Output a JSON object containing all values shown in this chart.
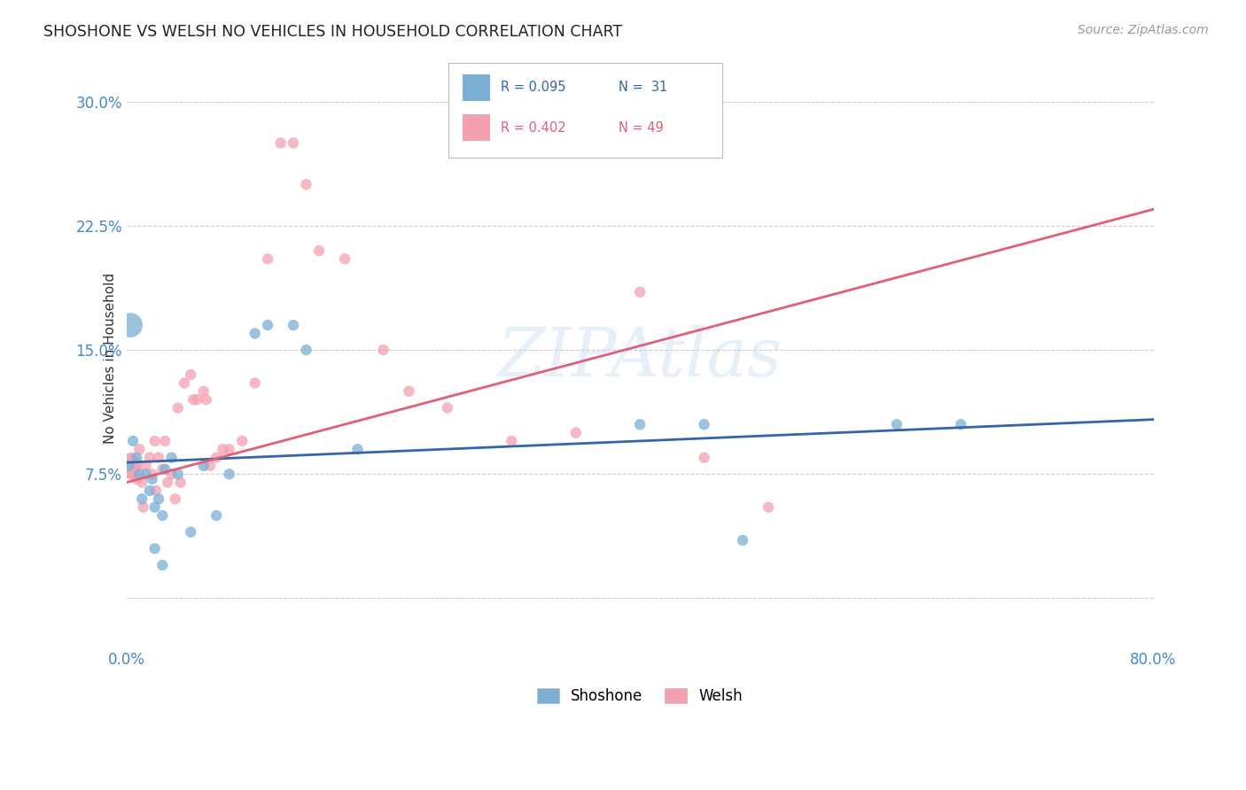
{
  "title": "SHOSHONE VS WELSH NO VEHICLES IN HOUSEHOLD CORRELATION CHART",
  "source": "Source: ZipAtlas.com",
  "ylabel": "No Vehicles in Household",
  "xlim": [
    0.0,
    80.0
  ],
  "ylim": [
    -3.0,
    32.0
  ],
  "yticks": [
    0.0,
    7.5,
    15.0,
    22.5,
    30.0
  ],
  "ytick_labels": [
    "",
    "7.5%",
    "15.0%",
    "22.5%",
    "30.0%"
  ],
  "xticks": [
    0.0,
    20.0,
    40.0,
    60.0,
    80.0
  ],
  "xtick_labels": [
    "0.0%",
    "",
    "",
    "",
    "80.0%"
  ],
  "grid_color": "#cccccc",
  "background_color": "#ffffff",
  "shoshone_color": "#7bafd4",
  "welsh_color": "#f4a0b0",
  "shoshone_line_color": "#3465a8",
  "welsh_line_color": "#e0607a",
  "shoshone_scatter_x": [
    0.2,
    0.5,
    0.8,
    1.0,
    1.2,
    1.5,
    1.8,
    2.0,
    2.2,
    2.5,
    2.8,
    3.0,
    3.5,
    4.0,
    5.0,
    6.0,
    7.0,
    8.0,
    10.0,
    11.0,
    13.0,
    14.0,
    18.0,
    40.0,
    45.0,
    60.0,
    65.0,
    0.3,
    2.2,
    2.8,
    48.0
  ],
  "shoshone_scatter_y": [
    8.0,
    9.5,
    8.5,
    7.5,
    6.0,
    7.5,
    6.5,
    7.2,
    5.5,
    6.0,
    5.0,
    7.8,
    8.5,
    7.5,
    4.0,
    8.0,
    5.0,
    7.5,
    16.0,
    16.5,
    16.5,
    15.0,
    9.0,
    10.5,
    10.5,
    10.5,
    10.5,
    16.5,
    3.0,
    2.0,
    3.5
  ],
  "shoshone_scatter_sizes": [
    80,
    80,
    80,
    80,
    80,
    80,
    80,
    80,
    80,
    80,
    80,
    80,
    80,
    80,
    80,
    80,
    80,
    80,
    80,
    80,
    80,
    80,
    80,
    80,
    80,
    80,
    80,
    400,
    80,
    80,
    80
  ],
  "welsh_scatter_x": [
    0.2,
    0.4,
    0.5,
    0.6,
    0.8,
    1.0,
    1.2,
    1.5,
    1.8,
    2.0,
    2.2,
    2.5,
    2.8,
    3.0,
    3.2,
    3.5,
    4.0,
    4.5,
    5.0,
    5.5,
    6.0,
    6.5,
    7.0,
    8.0,
    10.0,
    11.0,
    12.0,
    13.0,
    14.0,
    15.0,
    17.0,
    20.0,
    25.0,
    30.0,
    35.0,
    40.0,
    45.0,
    50.0,
    0.3,
    0.7,
    1.3,
    2.3,
    3.8,
    4.2,
    5.2,
    6.2,
    7.5,
    9.0,
    22.0
  ],
  "welsh_scatter_y": [
    8.0,
    8.5,
    7.5,
    8.0,
    7.2,
    9.0,
    7.0,
    8.0,
    8.5,
    7.5,
    9.5,
    8.5,
    7.8,
    9.5,
    7.0,
    7.5,
    11.5,
    13.0,
    13.5,
    12.0,
    12.5,
    8.0,
    8.5,
    9.0,
    13.0,
    20.5,
    27.5,
    27.5,
    25.0,
    21.0,
    20.5,
    15.0,
    11.5,
    9.5,
    10.0,
    18.5,
    8.5,
    5.5,
    7.5,
    8.0,
    5.5,
    6.5,
    6.0,
    7.0,
    12.0,
    12.0,
    9.0,
    9.5,
    12.5
  ],
  "welsh_scatter_sizes": [
    400,
    80,
    80,
    80,
    80,
    80,
    80,
    80,
    80,
    80,
    80,
    80,
    80,
    80,
    80,
    80,
    80,
    80,
    80,
    80,
    80,
    80,
    80,
    80,
    80,
    80,
    80,
    80,
    80,
    80,
    80,
    80,
    80,
    80,
    80,
    80,
    80,
    80,
    80,
    80,
    80,
    80,
    80,
    80,
    80,
    80,
    80,
    80,
    80
  ],
  "shoshone_line": {
    "x0": 0.0,
    "x1": 80.0,
    "y0": 8.2,
    "y1": 10.8
  },
  "welsh_line": {
    "x0": 0.0,
    "x1": 80.0,
    "y0": 7.0,
    "y1": 23.5
  }
}
